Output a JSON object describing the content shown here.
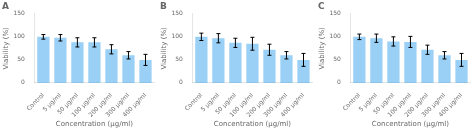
{
  "chart_data": [
    {
      "type": "bar",
      "title": "A",
      "categories": [
        "Control",
        "5 μg/ml",
        "50 μg/ml",
        "100 μg/ml",
        "200 μg/ml",
        "300 μg/ml",
        "400 μg/ml"
      ],
      "values": [
        100,
        98,
        88,
        88,
        73,
        60,
        50
      ],
      "errors": [
        5,
        7,
        10,
        10,
        10,
        8,
        12
      ],
      "xlabel": "Concentration (μg/ml)",
      "ylabel": "Viability (%)",
      "ylim": [
        0,
        150
      ],
      "yticks": [
        0,
        50,
        100,
        150
      ],
      "grid": false
    },
    {
      "type": "bar",
      "title": "B",
      "categories": [
        "Control",
        "5 μg/ml",
        "50 μg/ml",
        "100 μg/ml",
        "200 μg/ml",
        "300 μg/ml",
        "400 μg/ml"
      ],
      "values": [
        100,
        97,
        87,
        85,
        72,
        60,
        50
      ],
      "errors": [
        8,
        10,
        10,
        14,
        12,
        8,
        14
      ],
      "xlabel": "Concentration (μg/ml)",
      "ylabel": "Viability (%)",
      "ylim": [
        0,
        150
      ],
      "yticks": [
        0,
        50,
        100,
        150
      ],
      "grid": false
    },
    {
      "type": "bar",
      "title": "C",
      "categories": [
        "Control",
        "5 μg/ml",
        "50 μg/ml",
        "100 μg/ml",
        "200 μg/ml",
        "300 μg/ml",
        "400 μg/ml"
      ],
      "values": [
        100,
        97,
        90,
        89,
        72,
        60,
        50
      ],
      "errors": [
        6,
        9,
        10,
        12,
        10,
        8,
        14
      ],
      "xlabel": "Concentration (μg/ml)",
      "ylabel": "Viability (%)",
      "ylim": [
        0,
        150
      ],
      "yticks": [
        0,
        50,
        100,
        150
      ],
      "grid": false
    }
  ]
}
